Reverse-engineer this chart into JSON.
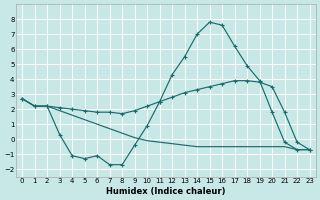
{
  "title": "",
  "xlabel": "Humidex (Indice chaleur)",
  "background_color": "#c8e8e8",
  "grid_color": "#ffffff",
  "line_color": "#1a6b6b",
  "xlim": [
    -0.5,
    23.5
  ],
  "ylim": [
    -2.5,
    9.0
  ],
  "yticks": [
    -2,
    -1,
    0,
    1,
    2,
    3,
    4,
    5,
    6,
    7,
    8
  ],
  "xticks": [
    0,
    1,
    2,
    3,
    4,
    5,
    6,
    7,
    8,
    9,
    10,
    11,
    12,
    13,
    14,
    15,
    16,
    17,
    18,
    19,
    20,
    21,
    22,
    23
  ],
  "series1_x": [
    0,
    1,
    2,
    3,
    4,
    5,
    6,
    7,
    8,
    9,
    10,
    11,
    12,
    13,
    14,
    15,
    16,
    17,
    18,
    19,
    20,
    21,
    22,
    23
  ],
  "series1_y": [
    2.7,
    2.2,
    2.2,
    0.3,
    -1.1,
    -1.3,
    -1.1,
    -1.7,
    -1.7,
    -0.4,
    0.9,
    2.5,
    4.3,
    5.5,
    7.0,
    7.8,
    7.6,
    6.2,
    4.9,
    3.9,
    1.8,
    -0.2,
    -0.7,
    -0.7
  ],
  "series2_x": [
    0,
    1,
    2,
    3,
    4,
    5,
    6,
    7,
    8,
    9,
    10,
    11,
    12,
    13,
    14,
    15,
    16,
    17,
    18,
    19,
    20,
    21,
    22,
    23
  ],
  "series2_y": [
    2.7,
    2.2,
    2.2,
    2.1,
    2.0,
    1.9,
    1.8,
    1.8,
    1.7,
    1.9,
    2.2,
    2.5,
    2.8,
    3.1,
    3.3,
    3.5,
    3.7,
    3.9,
    3.9,
    3.8,
    3.5,
    1.8,
    -0.2,
    -0.7
  ],
  "series3_x": [
    0,
    1,
    2,
    3,
    4,
    5,
    6,
    7,
    8,
    9,
    10,
    11,
    12,
    13,
    14,
    15,
    16,
    17,
    18,
    19,
    20,
    21,
    22,
    23
  ],
  "series3_y": [
    2.7,
    2.2,
    2.2,
    1.9,
    1.6,
    1.3,
    1.0,
    0.7,
    0.4,
    0.1,
    -0.1,
    -0.2,
    -0.3,
    -0.4,
    -0.5,
    -0.5,
    -0.5,
    -0.5,
    -0.5,
    -0.5,
    -0.5,
    -0.5,
    -0.7,
    -0.7
  ]
}
